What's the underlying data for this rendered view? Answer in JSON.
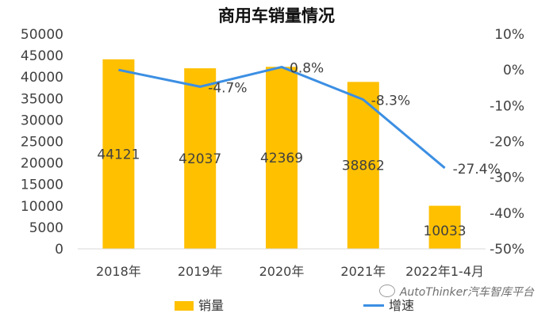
{
  "chart_data": {
    "type": "bar",
    "title": "商用车销量情况",
    "categories": [
      "2018年",
      "2019年",
      "2020年",
      "2021年",
      "2022年1-4月"
    ],
    "series": [
      {
        "name": "销量",
        "type": "bar",
        "axis": "left",
        "values": [
          44121,
          42037,
          42369,
          38862,
          10033
        ],
        "color": "#FFC000"
      },
      {
        "name": "增速",
        "type": "line",
        "axis": "right",
        "values": [
          0.0,
          -4.7,
          0.8,
          -8.3,
          -27.4
        ],
        "value_labels": [
          "",
          "-4.7%",
          "0.8%",
          "-8.3%",
          "-27.4%"
        ],
        "color": "#3C8FE3"
      }
    ],
    "left_axis": {
      "min": 0,
      "max": 50000,
      "ticks": [
        "0",
        "5000",
        "10000",
        "15000",
        "20000",
        "25000",
        "30000",
        "35000",
        "40000",
        "45000",
        "50000"
      ]
    },
    "right_axis": {
      "min": -50,
      "max": 10,
      "ticks": [
        "-50%",
        "-40%",
        "-30%",
        "-20%",
        "-10%",
        "0%",
        "10%"
      ]
    },
    "grid": false,
    "legend_position": "bottom"
  },
  "watermark": "AutoThinker汽车智库平台",
  "colors": {
    "bar": "#FFC000",
    "line": "#3C8FE3",
    "axis_text": "#404040"
  }
}
